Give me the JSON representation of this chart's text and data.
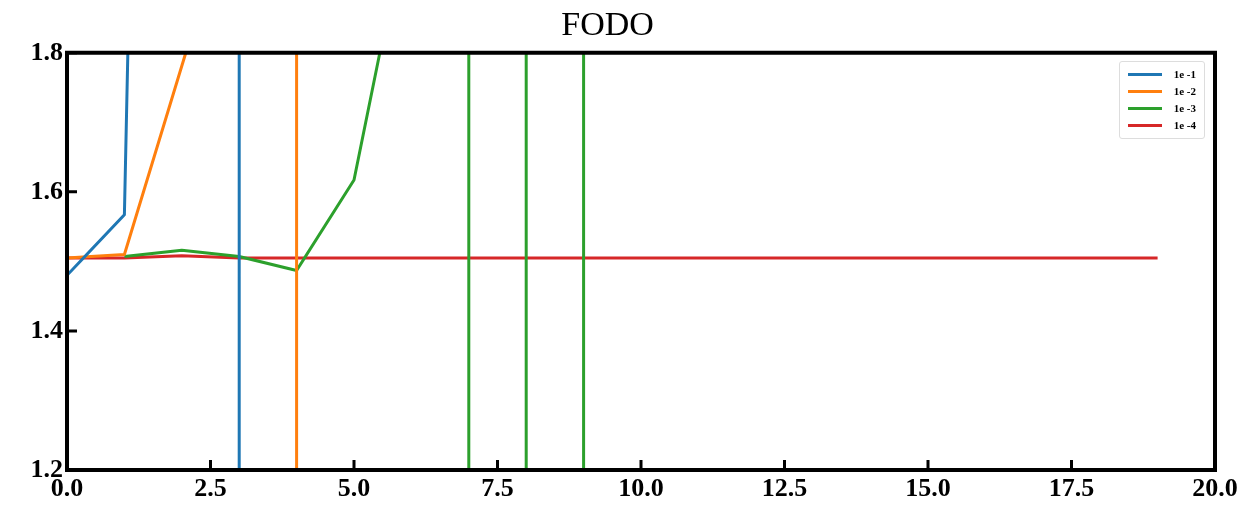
{
  "chart_data": {
    "type": "line",
    "title": "FODO",
    "xlim": [
      0,
      20
    ],
    "xticks": [
      {
        "value": 0,
        "label": "0.0"
      },
      {
        "value": 2.5,
        "label": "2.5"
      },
      {
        "value": 5,
        "label": "5.0"
      },
      {
        "value": 7.5,
        "label": "7.5"
      },
      {
        "value": 10,
        "label": "10.0"
      },
      {
        "value": 12.5,
        "label": "12.5"
      },
      {
        "value": 15,
        "label": "15.0"
      },
      {
        "value": 17.5,
        "label": "17.5"
      },
      {
        "value": 20,
        "label": "20.0"
      }
    ],
    "ylim": [
      1.2,
      1.8
    ],
    "yticks": [
      1.2,
      1.4,
      1.6,
      1.8
    ],
    "grid": false,
    "legend": "top right",
    "marker": "none",
    "line_style": "solid",
    "series": [
      {
        "name": "1e -1",
        "color": "#1f77b4",
        "x": [
          0,
          1,
          1.06,
          2,
          3,
          3
        ],
        "values": [
          1.48,
          1.567,
          1.8,
          null,
          1.8,
          1.2
        ]
      },
      {
        "name": "1e -2",
        "color": "#ff7f0e",
        "x": [
          0,
          1,
          2.07,
          3,
          4,
          4
        ],
        "values": [
          1.505,
          1.51,
          1.8,
          null,
          1.8,
          1.2
        ]
      },
      {
        "name": "1e -3",
        "color": "#2ca02c",
        "x": [
          1,
          2,
          3,
          4,
          5,
          5.45,
          6,
          7,
          7,
          7.5,
          8,
          8,
          8.5,
          9,
          9
        ],
        "values": [
          1.507,
          1.516,
          1.507,
          1.487,
          1.617,
          1.8,
          null,
          1.8,
          1.2,
          null,
          1.8,
          1.2,
          null,
          1.8,
          1.2
        ]
      },
      {
        "name": "1e -4",
        "color": "#d62728",
        "x": [
          0,
          1,
          2,
          3,
          4,
          5,
          6,
          7,
          8,
          9,
          10,
          11,
          12,
          13,
          14,
          15,
          16,
          17,
          18,
          19
        ],
        "values": [
          1.505,
          1.505,
          1.508,
          1.505,
          1.505,
          1.505,
          1.505,
          1.505,
          1.505,
          1.505,
          1.505,
          1.505,
          1.505,
          1.505,
          1.505,
          1.505,
          1.505,
          1.505,
          1.505,
          1.505
        ]
      }
    ]
  }
}
